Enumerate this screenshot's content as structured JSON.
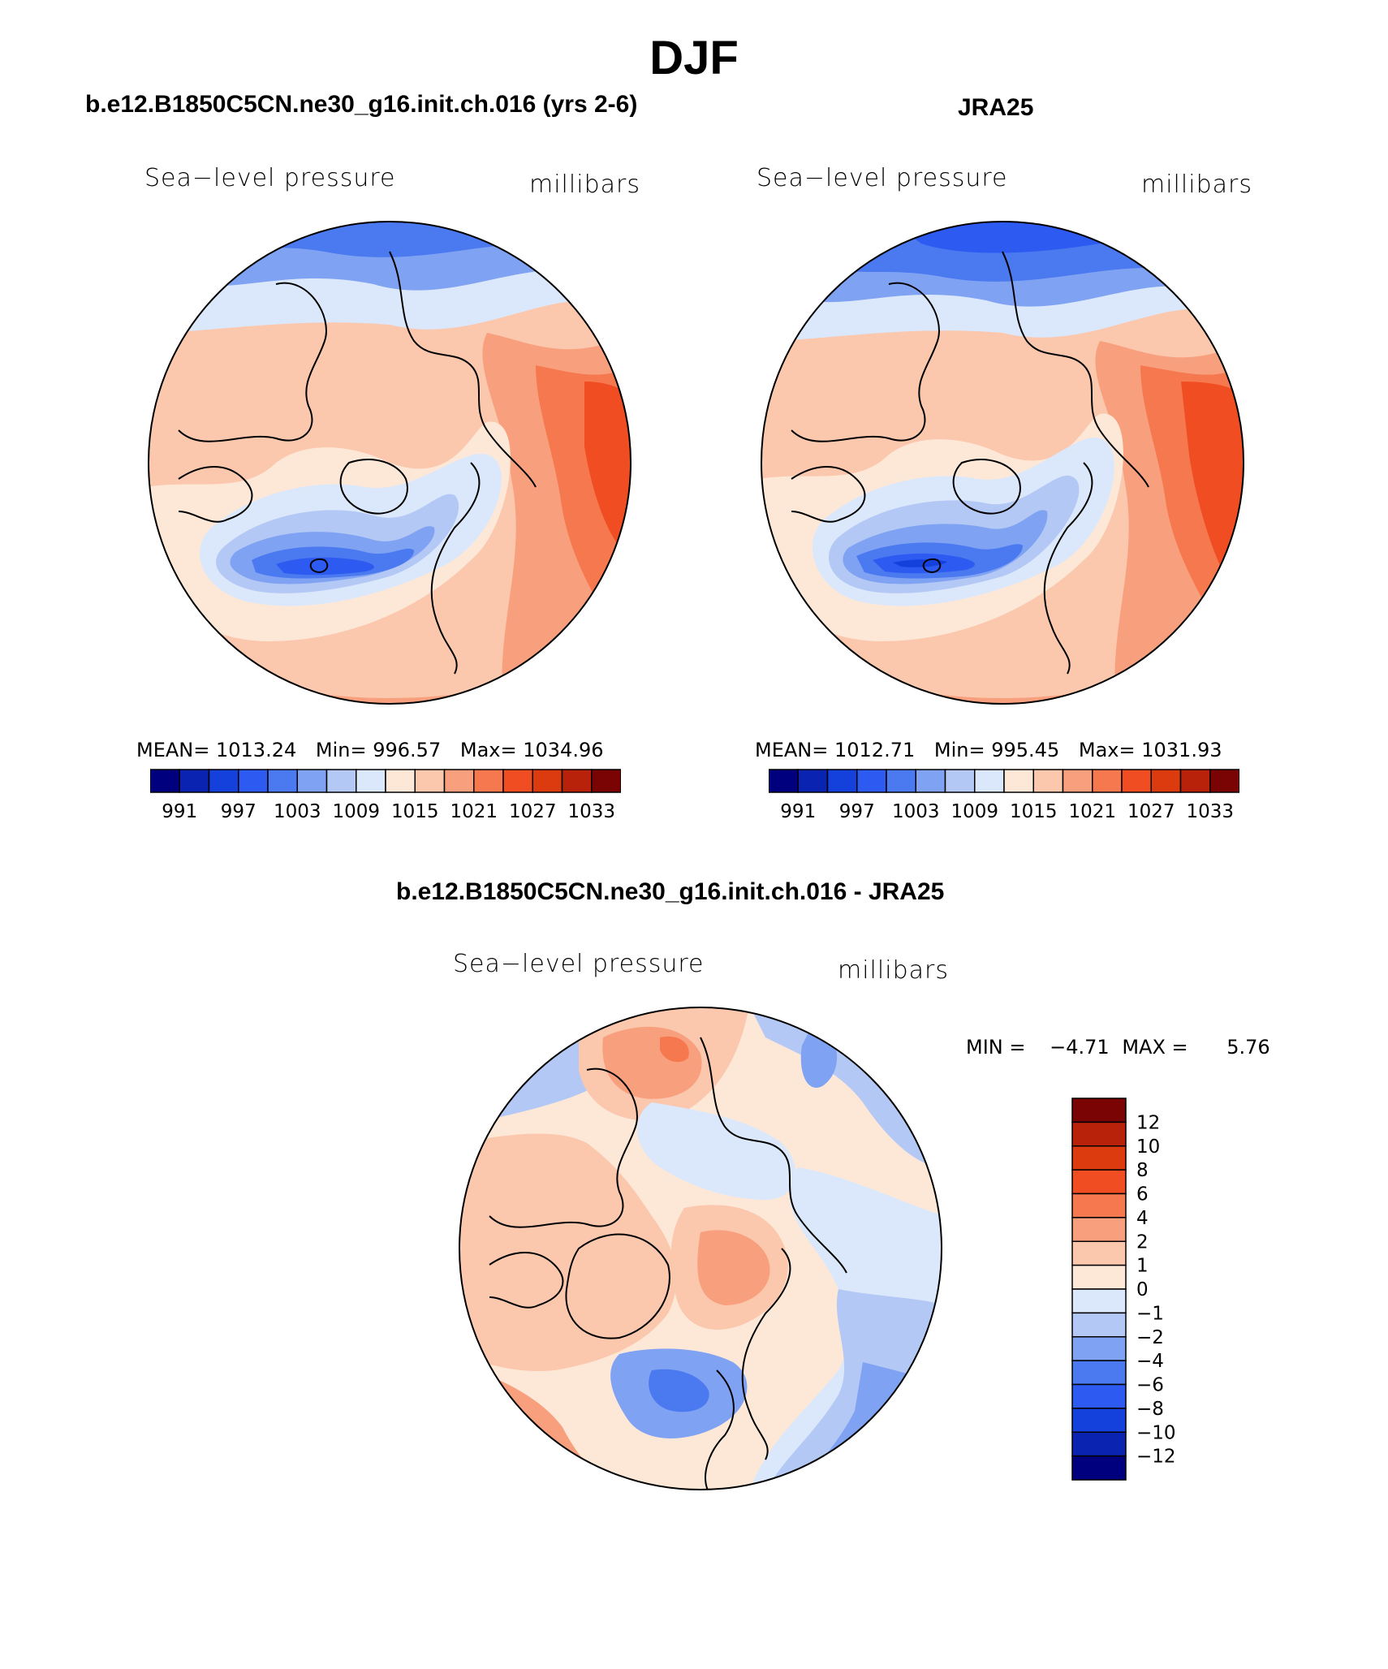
{
  "figure": {
    "season": "DJF"
  },
  "panels": [
    {
      "title": "b.e12.B1850C5CN.ne30_g16.init.ch.016 (yrs 2-6)",
      "variable": "Sea−level pressure",
      "units": "millibars",
      "mean_label": "MEAN=",
      "mean": "1013.24",
      "min_label": "Min=",
      "min": "996.57",
      "max_label": "Max=",
      "max": "1034.96"
    },
    {
      "title": "JRA25",
      "variable": "Sea−level pressure",
      "units": "millibars",
      "mean_label": "MEAN=",
      "mean": "1012.71",
      "min_label": "Min=",
      "min": "995.45",
      "max_label": "Max=",
      "max": "1031.93"
    }
  ],
  "difference": {
    "title": "b.e12.B1850C5CN.ne30_g16.init.ch.016 - JRA25",
    "variable": "Sea−level pressure",
    "units": "millibars",
    "min_label": "MIN =",
    "min": "−4.71",
    "max_label": "MAX =",
    "max": "5.76"
  },
  "chart_data": [
    {
      "type": "map",
      "projection": "north polar stereographic",
      "title": "b.e12.B1850C5CN.ne30_g16.init.ch.016 (yrs 2-6)",
      "field": "Sea-level pressure (millibars), DJF",
      "colorbar": {
        "labels": [
          "991",
          "997",
          "1003",
          "1009",
          "1015",
          "1021",
          "1027",
          "1033"
        ],
        "colors": [
          "#00007f",
          "#0a23b0",
          "#1440dc",
          "#2d5af0",
          "#4a79f0",
          "#7fa3f2",
          "#b4c8f5",
          "#dbe8fb",
          "#fde8d8",
          "#fbc7ad",
          "#f8a07e",
          "#f6784f",
          "#f04e22",
          "#dc3a0f",
          "#b8210a",
          "#7a0404"
        ]
      },
      "stats": {
        "mean": 1013.24,
        "min": 996.57,
        "max": 1034.96
      }
    },
    {
      "type": "map",
      "projection": "north polar stereographic",
      "title": "JRA25",
      "field": "Sea-level pressure (millibars), DJF",
      "colorbar": {
        "labels": [
          "991",
          "997",
          "1003",
          "1009",
          "1015",
          "1021",
          "1027",
          "1033"
        ],
        "colors": [
          "#00007f",
          "#0a23b0",
          "#1440dc",
          "#2d5af0",
          "#4a79f0",
          "#7fa3f2",
          "#b4c8f5",
          "#dbe8fb",
          "#fde8d8",
          "#fbc7ad",
          "#f8a07e",
          "#f6784f",
          "#f04e22",
          "#dc3a0f",
          "#b8210a",
          "#7a0404"
        ]
      },
      "stats": {
        "mean": 1012.71,
        "min": 995.45,
        "max": 1031.93
      }
    },
    {
      "type": "map",
      "projection": "north polar stereographic",
      "title": "b.e12.B1850C5CN.ne30_g16.init.ch.016 - JRA25",
      "field": "Sea-level pressure difference (millibars), DJF",
      "colorbar": {
        "labels": [
          "12",
          "10",
          "8",
          "6",
          "4",
          "2",
          "1",
          "0",
          "−1",
          "−2",
          "−4",
          "−6",
          "−8",
          "−10",
          "−12"
        ],
        "colors": [
          "#7a0404",
          "#b8210a",
          "#dc3a0f",
          "#f04e22",
          "#f6784f",
          "#f8a07e",
          "#fbc7ad",
          "#fde8d8",
          "#dbe8fb",
          "#b4c8f5",
          "#7fa3f2",
          "#4a79f0",
          "#2d5af0",
          "#1440dc",
          "#0a23b0",
          "#00007f"
        ]
      },
      "stats": {
        "min": -4.71,
        "max": 5.76
      }
    }
  ]
}
